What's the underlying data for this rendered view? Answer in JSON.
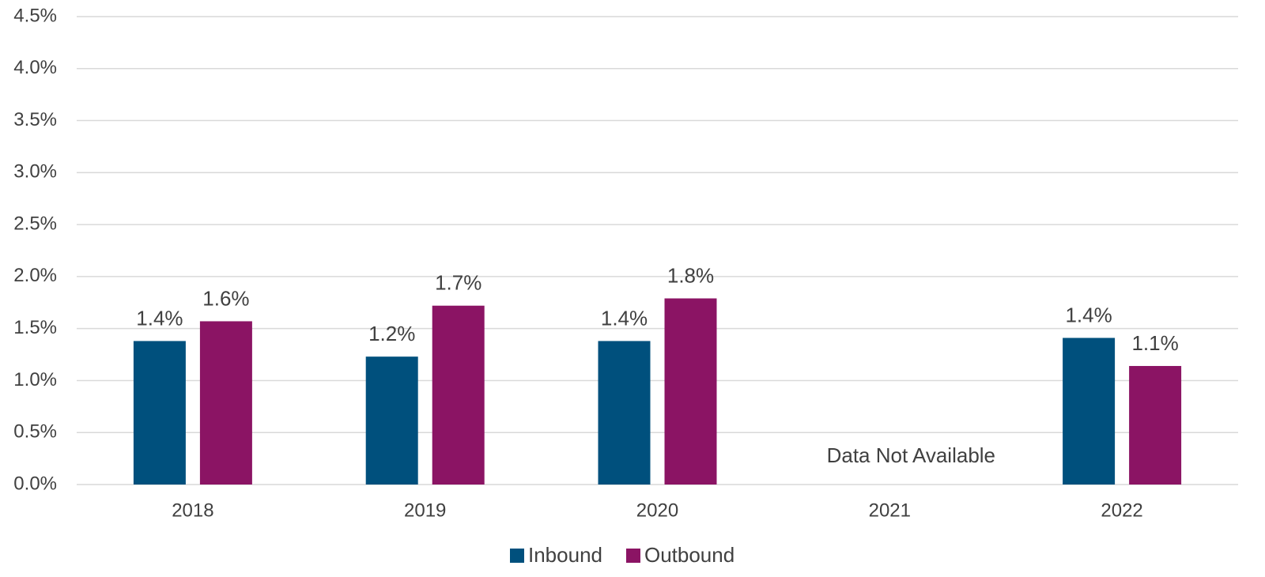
{
  "chart_data": {
    "type": "bar",
    "categories": [
      "2018",
      "2019",
      "2020",
      "2021",
      "2022"
    ],
    "series": [
      {
        "name": "Inbound",
        "color": "#00507d",
        "values": [
          1.38,
          1.23,
          1.38,
          null,
          1.41
        ],
        "value_labels": [
          "1.4%",
          "1.2%",
          "1.4%",
          null,
          "1.4%"
        ]
      },
      {
        "name": "Outbound",
        "color": "#8b1464",
        "values": [
          1.57,
          1.72,
          1.79,
          null,
          1.14
        ],
        "value_labels": [
          "1.6%",
          "1.7%",
          "1.8%",
          null,
          "1.1%"
        ]
      }
    ],
    "annotation": "Data Not Available",
    "ylim": [
      0,
      4.5
    ],
    "yticks": [
      {
        "value": 0,
        "label": "0.0%"
      },
      {
        "value": 0.5,
        "label": "0.5%"
      },
      {
        "value": 1,
        "label": "1.0%"
      },
      {
        "value": 1.5,
        "label": "1.5%"
      },
      {
        "value": 2,
        "label": "2.0%"
      },
      {
        "value": 2.5,
        "label": "2.5%"
      },
      {
        "value": 3,
        "label": "3.0%"
      },
      {
        "value": 3.5,
        "label": "3.5%"
      },
      {
        "value": 4,
        "label": "4.0%"
      },
      {
        "value": 4.5,
        "label": "4.5%"
      }
    ],
    "grid": true,
    "legend": "bottom"
  }
}
